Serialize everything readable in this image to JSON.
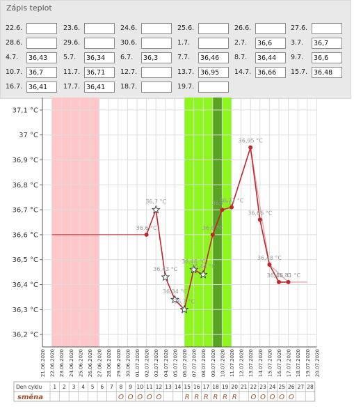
{
  "panel": {
    "title": "Zápis teplot",
    "entries": [
      {
        "label": "22.6.",
        "value": ""
      },
      {
        "label": "23.6.",
        "value": ""
      },
      {
        "label": "24.6.",
        "value": ""
      },
      {
        "label": "25.6.",
        "value": ""
      },
      {
        "label": "26.6.",
        "value": ""
      },
      {
        "label": "27.6.",
        "value": ""
      },
      {
        "label": "28.6.",
        "value": ""
      },
      {
        "label": "29.6.",
        "value": ""
      },
      {
        "label": "30.6.",
        "value": ""
      },
      {
        "label": "1.7.",
        "value": ""
      },
      {
        "label": "2.7.",
        "value": "36,6"
      },
      {
        "label": "3.7.",
        "value": "36,7"
      },
      {
        "label": "4.7.",
        "value": "36,43"
      },
      {
        "label": "5.7.",
        "value": "36,34"
      },
      {
        "label": "6.7.",
        "value": "36,3"
      },
      {
        "label": "7.7.",
        "value": "36,46"
      },
      {
        "label": "8.7.",
        "value": "36,44"
      },
      {
        "label": "9.7.",
        "value": "36,6"
      },
      {
        "label": "10.7.",
        "value": "36,7"
      },
      {
        "label": "11.7.",
        "value": "36,71"
      },
      {
        "label": "12.7.",
        "value": ""
      },
      {
        "label": "13.7.",
        "value": "36,95"
      },
      {
        "label": "14.7.",
        "value": "36,66"
      },
      {
        "label": "15.7.",
        "value": "36,48"
      },
      {
        "label": "16.7.",
        "value": "36,41"
      },
      {
        "label": "17.7.",
        "value": "36,41"
      },
      {
        "label": "18.7.",
        "value": ""
      },
      {
        "label": "19.7.",
        "value": ""
      }
    ]
  },
  "chart_data": {
    "type": "line",
    "y_ticks": [
      "36,2 °C",
      "36,3 °C",
      "36,4 °C",
      "36,5 °C",
      "36,6 °C",
      "36,7 °C",
      "36,8 °C",
      "36,9 °C",
      "37 °C",
      "37,1 °C"
    ],
    "ylim": [
      36.15,
      37.15
    ],
    "dates": [
      "21.06.2020",
      "22.06.2020",
      "23.06.2020",
      "24.06.2020",
      "25.06.2020",
      "26.06.2020",
      "27.06.2020",
      "28.06.2020",
      "29.06.2020",
      "30.06.2020",
      "01.07.2020",
      "02.07.2020",
      "03.07.2020",
      "04.07.2020",
      "05.07.2020",
      "06.07.2020",
      "07.07.2020",
      "08.07.2020",
      "09.07.2020",
      "10.07.2020",
      "11.07.2020",
      "12.07.2020",
      "13.07.2020",
      "14.07.2020",
      "15.07.2020",
      "16.07.2020",
      "17.07.2020",
      "18.07.2020",
      "19.07.2020",
      "20.07.2020"
    ],
    "points": [
      {
        "date": "02.07.2020",
        "value": 36.6,
        "label": "36,6 °C",
        "marker": "dot"
      },
      {
        "date": "03.07.2020",
        "value": 36.7,
        "label": "36,7 °C",
        "marker": "star"
      },
      {
        "date": "04.07.2020",
        "value": 36.43,
        "label": "36,43 °C",
        "marker": "star"
      },
      {
        "date": "05.07.2020",
        "value": 36.34,
        "label": "36,34 °C",
        "marker": "star"
      },
      {
        "date": "06.07.2020",
        "value": 36.3,
        "label": "36,3 °C",
        "marker": "star"
      },
      {
        "date": "07.07.2020",
        "value": 36.46,
        "label": "36,46 °C",
        "marker": "star"
      },
      {
        "date": "08.07.2020",
        "value": 36.44,
        "label": "36,44 °C",
        "marker": "star"
      },
      {
        "date": "09.07.2020",
        "value": 36.6,
        "label": "36,6 °C",
        "marker": "dot"
      },
      {
        "date": "10.07.2020",
        "value": 36.7,
        "label": "36,7 °C",
        "marker": "dot"
      },
      {
        "date": "11.07.2020",
        "value": 36.71,
        "label": "36,71 °C",
        "marker": "dot"
      },
      {
        "date": "13.07.2020",
        "value": 36.95,
        "label": "36,95 °C",
        "marker": "dot"
      },
      {
        "date": "14.07.2020",
        "value": 36.66,
        "label": "36,66 °C",
        "marker": "dot"
      },
      {
        "date": "15.07.2020",
        "value": 36.48,
        "label": "36,48 °C",
        "marker": "dot"
      },
      {
        "date": "16.07.2020",
        "value": 36.41,
        "label": "36,41 °C",
        "marker": "dot"
      },
      {
        "date": "17.07.2020",
        "value": 36.41,
        "label": "36,41 °C",
        "marker": "dot"
      }
    ],
    "baseline": {
      "value": 36.6,
      "from": "22.06.2020",
      "to": "02.07.2020"
    },
    "trend_line": [
      {
        "date": "11.07.2020",
        "value": 36.71
      },
      {
        "date": "13.07.2020",
        "value": 36.95
      },
      {
        "date": "15.07.2020",
        "value": 36.48
      },
      {
        "date": "17.07.2020",
        "value": 36.41
      },
      {
        "date": "19.07.2020",
        "value": 36.41
      }
    ],
    "bands": [
      {
        "kind": "period",
        "from": "22.06.2020",
        "to": "27.06.2020",
        "color": "#ffc7c8"
      },
      {
        "kind": "fertile",
        "from": "06.07.2020",
        "to": "11.07.2020",
        "color": "#8ff51f"
      },
      {
        "kind": "ovulation",
        "from": "09.07.2020",
        "to": "10.07.2020",
        "color": "#58a321"
      }
    ],
    "colors": {
      "line": "#c0262a",
      "trend": "#e7a4a6",
      "label": "#999999",
      "grid": "#dddddd"
    }
  },
  "cycle": {
    "header_label": "Den cyklu",
    "days": [
      "1",
      "2",
      "3",
      "4",
      "5",
      "6",
      "7",
      "8",
      "9",
      "10",
      "11",
      "12",
      "13",
      "14",
      "15",
      "16",
      "17",
      "18",
      "19",
      "20",
      "21",
      "22",
      "23",
      "24",
      "25",
      "26",
      "27",
      "28"
    ],
    "row_label": "směna",
    "shifts": [
      "",
      "",
      "",
      "",
      "",
      "",
      "",
      "O",
      "O",
      "O",
      "O",
      "O",
      "",
      "",
      "R",
      "R",
      "R",
      "R",
      "R",
      "R",
      "",
      "O",
      "O",
      "O",
      "O",
      "O",
      "",
      ""
    ],
    "shift_color": "#a0522d"
  }
}
